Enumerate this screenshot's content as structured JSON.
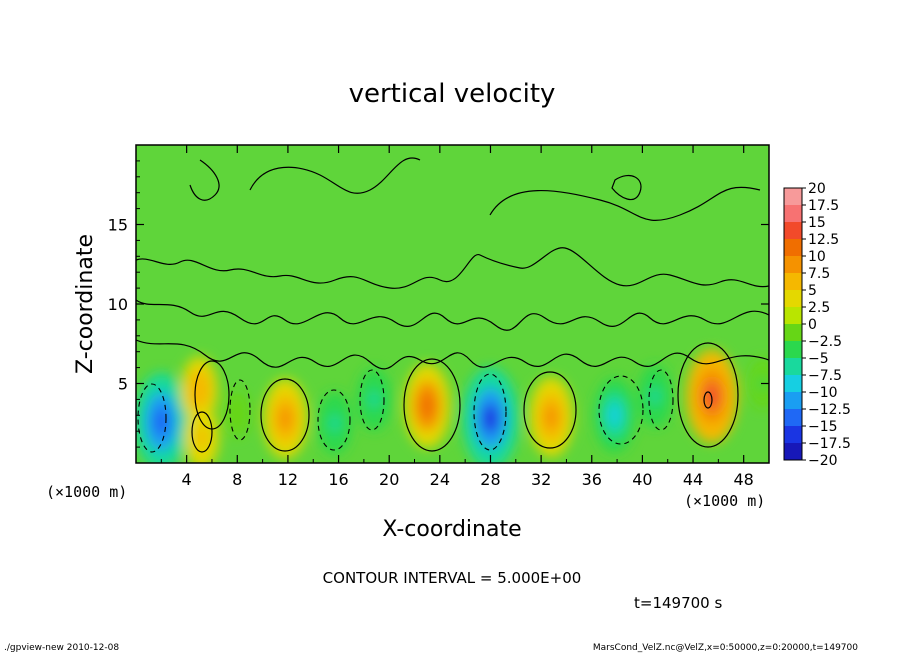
{
  "chart_data": {
    "type": "heatmap",
    "title": "vertical velocity",
    "xlabel": "X-coordinate",
    "ylabel": "Z-coordinate",
    "x_unit": "(×1000 m)",
    "y_unit": "(×1000 m)",
    "xlim": [
      0,
      50
    ],
    "ylim": [
      0,
      20
    ],
    "x_ticks": [
      4,
      8,
      12,
      16,
      20,
      24,
      28,
      32,
      36,
      40,
      44,
      48
    ],
    "y_ticks": [
      5,
      10,
      15
    ],
    "colorbar": {
      "levels": [
        20,
        17.5,
        15,
        12.5,
        10,
        7.5,
        5,
        2.5,
        0,
        -2.5,
        -5,
        -7.5,
        -10,
        -12.5,
        -15,
        -17.5,
        -20
      ],
      "labels": [
        "20",
        "17.5",
        "15",
        "12.5",
        "10",
        "7.5",
        "5",
        "2.5",
        "0",
        "−2.5",
        "−5",
        "−7.5",
        "−10",
        "−12.5",
        "−15",
        "−17.5",
        "−20"
      ],
      "colors": [
        "#f79a9a",
        "#f77272",
        "#f24a2a",
        "#f06e00",
        "#f59200",
        "#f5b800",
        "#e4d800",
        "#b9e500",
        "#66d616",
        "#2bd84d",
        "#19d99d",
        "#16cfe2",
        "#1a9ef2",
        "#1f68f5",
        "#1a35e3",
        "#1718b8",
        "#5a18a8"
      ]
    },
    "cells": [
      {
        "x": 2,
        "z": 2.6,
        "value": -14
      },
      {
        "x": 5,
        "z": 4.6,
        "value": 7
      },
      {
        "x": 5.2,
        "z": 1.6,
        "value": 6
      },
      {
        "x": 8,
        "z": 3.1,
        "value": -2
      },
      {
        "x": 11.8,
        "z": 2.8,
        "value": 10
      },
      {
        "x": 15.7,
        "z": 2.5,
        "value": -6
      },
      {
        "x": 18.8,
        "z": 4,
        "value": -6
      },
      {
        "x": 23,
        "z": 3.6,
        "value": 11
      },
      {
        "x": 28,
        "z": 2.8,
        "value": -15
      },
      {
        "x": 32.8,
        "z": 2.9,
        "value": 10
      },
      {
        "x": 37.8,
        "z": 3,
        "value": -9
      },
      {
        "x": 41,
        "z": 4.2,
        "value": -6
      },
      {
        "x": 45.5,
        "z": 4.2,
        "value": 13
      },
      {
        "x": 49.5,
        "z": 5,
        "value": -3
      }
    ],
    "contour_interval_label": "CONTOUR INTERVAL = 5.000E+00"
  },
  "time_label": "t=149700 s",
  "footer": {
    "left": "./gpview-new  2010-12-08",
    "right": "MarsCond_VelZ.nc@VelZ,x=0:50000,z=0:20000,t=149700"
  },
  "colors": {
    "background_field": "#5fd53a",
    "frame": "#000000"
  }
}
